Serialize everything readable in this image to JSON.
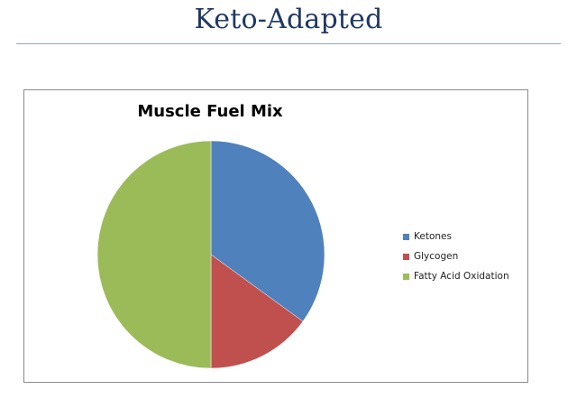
{
  "slide": {
    "title": "Keto-Adapted"
  },
  "chart_data": {
    "type": "pie",
    "title": "Muscle Fuel Mix",
    "categories": [
      "Ketones",
      "Glycogen",
      "Fatty Acid Oxidation"
    ],
    "values": [
      35,
      15,
      50
    ],
    "colors": [
      "#4f81bd",
      "#c0504d",
      "#9bbb59"
    ],
    "legend_position": "right"
  }
}
